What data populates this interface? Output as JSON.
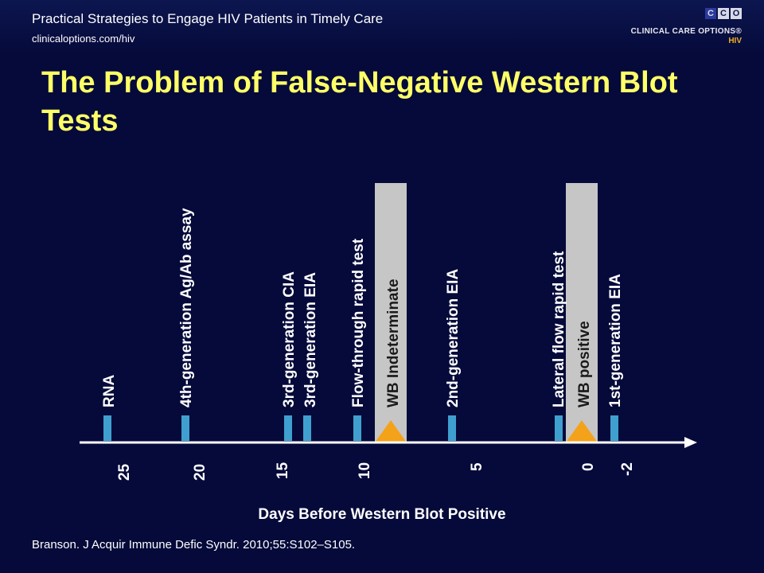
{
  "header": {
    "title": "Practical Strategies to Engage HIV Patients in Timely Care",
    "url": "clinicaloptions.com/hiv"
  },
  "logo": {
    "letters": [
      "C",
      "C",
      "O"
    ],
    "text": "CLINICAL CARE OPTIONS®",
    "sub": "HIV"
  },
  "slide": {
    "title": "The Problem of False-Negative Western Blot Tests"
  },
  "timeline": {
    "axis_label": "Days Before Western Blot Positive",
    "ticks": [
      "25",
      "20",
      "15",
      "10",
      "5",
      "0",
      "-2"
    ],
    "markers": [
      {
        "label": "RNA"
      },
      {
        "label": "4th-generation Ag/Ab assay"
      },
      {
        "label": "3rd-generation CIA"
      },
      {
        "label": "3rd-generation EIA"
      },
      {
        "label": "Flow-through rapid test"
      },
      {
        "label": "2nd-generation EIA"
      },
      {
        "label": "Lateral flow rapid test"
      },
      {
        "label": "1st-generation EIA"
      }
    ],
    "wb_bands": [
      {
        "label": "WB Indeterminate"
      },
      {
        "label": "WB positive"
      }
    ],
    "colors": {
      "marker": "#3fa0d0",
      "band": "#c6c6c6",
      "triangle": "#f4a21a",
      "axis": "#ffffff",
      "title": "#ffff66"
    }
  },
  "citation": "Branson. J Acquir Immune Defic Syndr. 2010;55:S102–S105."
}
